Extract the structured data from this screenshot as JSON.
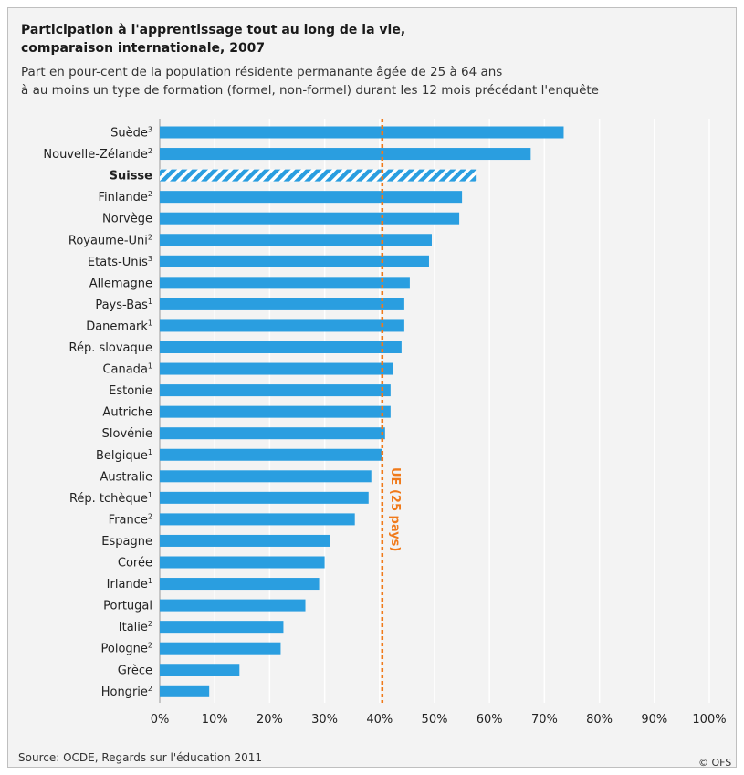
{
  "title_line1": "Participation à l'apprentissage tout au long de la vie,",
  "title_line2": "comparaison internationale, 2007",
  "subtitle_line1": "Part en pour-cent de la population résidente permanante âgée de 25 à 64 ans",
  "subtitle_line2": "à au moins un type de formation (formel, non-formel) durant les 12 mois précédant l'enquête",
  "source": "Source: OCDE, Regards sur l'éducation 2011",
  "copyright": "© OFS",
  "colors": {
    "bar": "#2a9ee0",
    "highlight_hatch": "#2a9ee0",
    "reference_line": "#f07a1a",
    "grid": "#ffffff",
    "background": "#f3f3f3"
  },
  "chart_data": {
    "type": "bar",
    "orientation": "horizontal",
    "categories": [
      "Suède",
      "Nouvelle-Zélande",
      "Suisse",
      "Finlande",
      "Norvège",
      "Royaume-Uni",
      "Etats-Unis",
      "Allemagne",
      "Pays-Bas",
      "Danemark",
      "Rép. slovaque",
      "Canada",
      "Estonie",
      "Autriche",
      "Slovénie",
      "Belgique",
      "Australie",
      "Rép. tchèque",
      "France",
      "Espagne",
      "Corée",
      "Irlande",
      "Portugal",
      "Italie",
      "Pologne",
      "Grèce",
      "Hongrie"
    ],
    "footnotes": [
      "3",
      "2",
      "",
      "2",
      "",
      "2",
      "3",
      "",
      "1",
      "1",
      "",
      "1",
      "",
      "",
      "",
      "1",
      "",
      "1",
      "2",
      "",
      "",
      "1",
      "",
      "2",
      "2",
      "",
      "2"
    ],
    "values": [
      73.5,
      67.5,
      57.5,
      55,
      54.5,
      49.5,
      49,
      45.5,
      44.5,
      44.5,
      44,
      42.5,
      42,
      42,
      41,
      40.5,
      38.5,
      38,
      35.5,
      31,
      30,
      29,
      26.5,
      22.5,
      22,
      14.5,
      9
    ],
    "highlight": "Suisse",
    "xlim": [
      0,
      100
    ],
    "xticks": [
      "0%",
      "10%",
      "20%",
      "30%",
      "40%",
      "50%",
      "60%",
      "70%",
      "80%",
      "90%",
      "100%"
    ],
    "reference_line": {
      "value": 40.5,
      "label": "UE (25 pays)"
    },
    "grid": true,
    "xlabel": "",
    "ylabel": ""
  }
}
